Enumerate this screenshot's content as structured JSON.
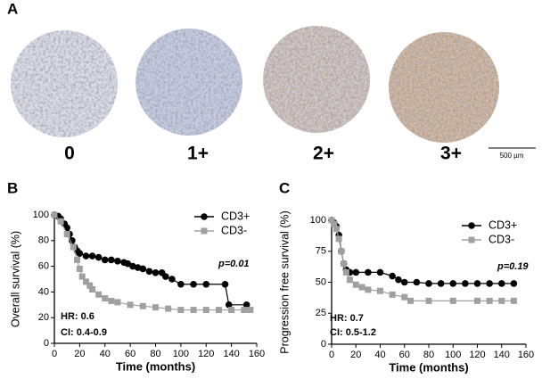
{
  "figure": {
    "panel_labels": [
      "A",
      "B",
      "C"
    ],
    "tissue_scores": [
      "0",
      "1+",
      "2+",
      "3+"
    ],
    "scale_bar": "500 µm"
  },
  "chart_data": [
    {
      "type": "line",
      "xlabel": "Time (months)",
      "ylabel": "Overall survival (%)",
      "xlim": [
        0,
        160
      ],
      "xticks": [
        0,
        20,
        40,
        60,
        80,
        100,
        120,
        140,
        160
      ],
      "ylim": [
        0,
        100
      ],
      "yticks": [
        0,
        20,
        40,
        60,
        80,
        100
      ],
      "legend": "upper right",
      "p_value": "p=0.01",
      "hr": "HR: 0.6",
      "ci": "CI: 0.4-0.9",
      "series": [
        {
          "name": "CD3+",
          "color": "#000000",
          "marker": "circle",
          "x": [
            0,
            3,
            5,
            8,
            10,
            12,
            14,
            16,
            18,
            20,
            25,
            30,
            35,
            40,
            45,
            50,
            55,
            58,
            62,
            66,
            70,
            75,
            80,
            85,
            88,
            93,
            100,
            110,
            120,
            135,
            138,
            152
          ],
          "values": [
            100,
            99,
            97,
            93,
            90,
            85,
            80,
            75,
            72,
            70,
            68,
            68,
            67,
            65,
            65,
            64,
            63,
            62,
            60,
            59,
            58,
            56,
            55,
            55,
            52,
            50,
            46,
            46,
            46,
            46,
            30,
            30
          ]
        },
        {
          "name": "CD3-",
          "color": "#a0a0a0",
          "marker": "square",
          "x": [
            0,
            5,
            10,
            15,
            18,
            20,
            22,
            25,
            28,
            30,
            35,
            40,
            45,
            50,
            60,
            70,
            80,
            90,
            100,
            110,
            120,
            130,
            140,
            150,
            155
          ],
          "values": [
            100,
            95,
            85,
            75,
            65,
            58,
            52,
            48,
            45,
            42,
            38,
            35,
            33,
            32,
            30,
            29,
            28,
            27,
            26,
            26,
            26,
            26,
            26,
            26,
            26
          ]
        }
      ]
    },
    {
      "type": "line",
      "xlabel": "Time (months)",
      "ylabel": "Progression free survival (%)",
      "xlim": [
        0,
        160
      ],
      "xticks": [
        0,
        20,
        40,
        60,
        80,
        100,
        120,
        140,
        160
      ],
      "ylim": [
        0,
        100
      ],
      "yticks": [
        0,
        25,
        50,
        75,
        100
      ],
      "legend": "upper right",
      "p_value": "p=0.19",
      "hr": "HR: 0.7",
      "ci": "CI: 0.5-1.2",
      "series": [
        {
          "name": "CD3+",
          "color": "#000000",
          "marker": "circle",
          "x": [
            0,
            2,
            4,
            6,
            8,
            10,
            12,
            15,
            20,
            30,
            40,
            50,
            55,
            60,
            70,
            80,
            90,
            100,
            110,
            120,
            130,
            140,
            150
          ],
          "values": [
            100,
            98,
            95,
            88,
            75,
            65,
            60,
            58,
            58,
            58,
            58,
            55,
            52,
            50,
            50,
            49,
            49,
            49,
            49,
            49,
            49,
            49,
            49
          ]
        },
        {
          "name": "CD3-",
          "color": "#a0a0a0",
          "marker": "square",
          "x": [
            0,
            2,
            4,
            6,
            8,
            10,
            12,
            15,
            20,
            25,
            30,
            40,
            50,
            60,
            65,
            80,
            100,
            120,
            130,
            140,
            150
          ],
          "values": [
            100,
            97,
            93,
            85,
            75,
            65,
            58,
            52,
            48,
            46,
            44,
            43,
            40,
            38,
            35,
            35,
            35,
            35,
            35,
            35,
            35
          ]
        }
      ]
    }
  ]
}
